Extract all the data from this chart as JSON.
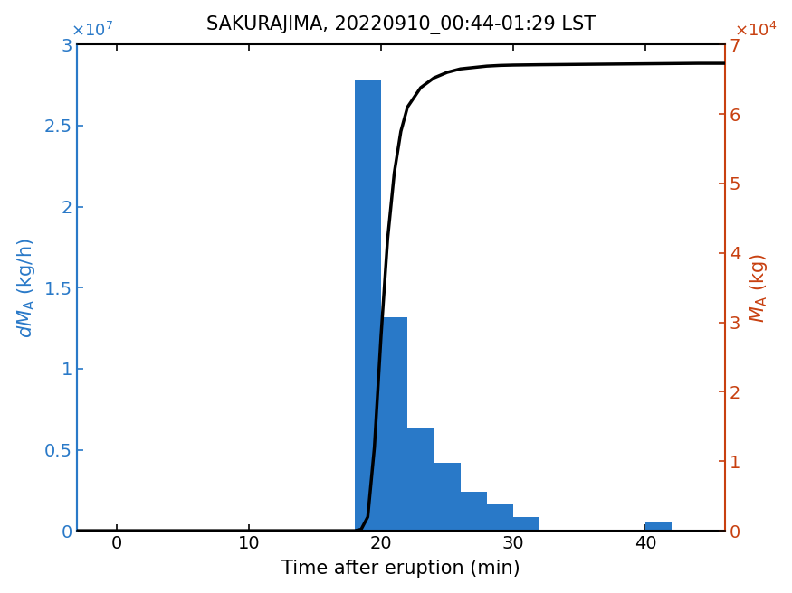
{
  "title": "SAKURAJIMA, 20220910_00:44-01:29 LST",
  "xlabel": "Time after eruption (min)",
  "left_color": "#2979C8",
  "right_color": "#C84010",
  "line_color": "#000000",
  "bar_color": "#2979C8",
  "xlim": [
    -3,
    46
  ],
  "ylim_left": [
    0,
    30000000.0
  ],
  "ylim_right": [
    0,
    70000.0
  ],
  "bar_centers": [
    19,
    21,
    23,
    25,
    27,
    29,
    31,
    41
  ],
  "bar_heights": [
    27800000.0,
    13200000.0,
    6300000.0,
    4200000.0,
    2400000.0,
    1650000.0,
    850000.0,
    500000.0
  ],
  "bar_width": 2.0,
  "cumulative_x": [
    -3,
    0,
    5,
    10,
    15,
    17.5,
    18.0,
    18.5,
    19.0,
    19.5,
    20.0,
    20.5,
    21.0,
    21.5,
    22.0,
    23.0,
    24.0,
    25.0,
    26.0,
    27.0,
    28.0,
    29.0,
    30.0,
    32.0,
    35.0,
    38.0,
    41.0,
    44.0,
    46.0
  ],
  "cumulative_y": [
    0,
    0,
    0,
    0,
    0,
    0,
    0,
    200,
    2000,
    12000.0,
    28000.0,
    42000.0,
    51500.0,
    57500.0,
    61000.0,
    63800.0,
    65200.0,
    66000.0,
    66500.0,
    66700.0,
    66900.0,
    67000.0,
    67050.0,
    67100.0,
    67150.0,
    67200.0,
    67250.0,
    67300.0,
    67300.0
  ],
  "xticks": [
    0,
    10,
    20,
    30,
    40
  ],
  "yticks_left": [
    0,
    5000000,
    10000000,
    15000000,
    20000000,
    25000000,
    30000000
  ],
  "ytick_labels_left": [
    "0",
    "0.5",
    "1",
    "1.5",
    "2",
    "2.5",
    "3"
  ],
  "yticks_right": [
    0,
    10000,
    20000,
    30000,
    40000,
    50000,
    60000,
    70000
  ],
  "ytick_labels_right": [
    "0",
    "1",
    "2",
    "3",
    "4",
    "5",
    "6",
    "7"
  ],
  "figsize": [
    8.75,
    6.56
  ],
  "dpi": 100
}
